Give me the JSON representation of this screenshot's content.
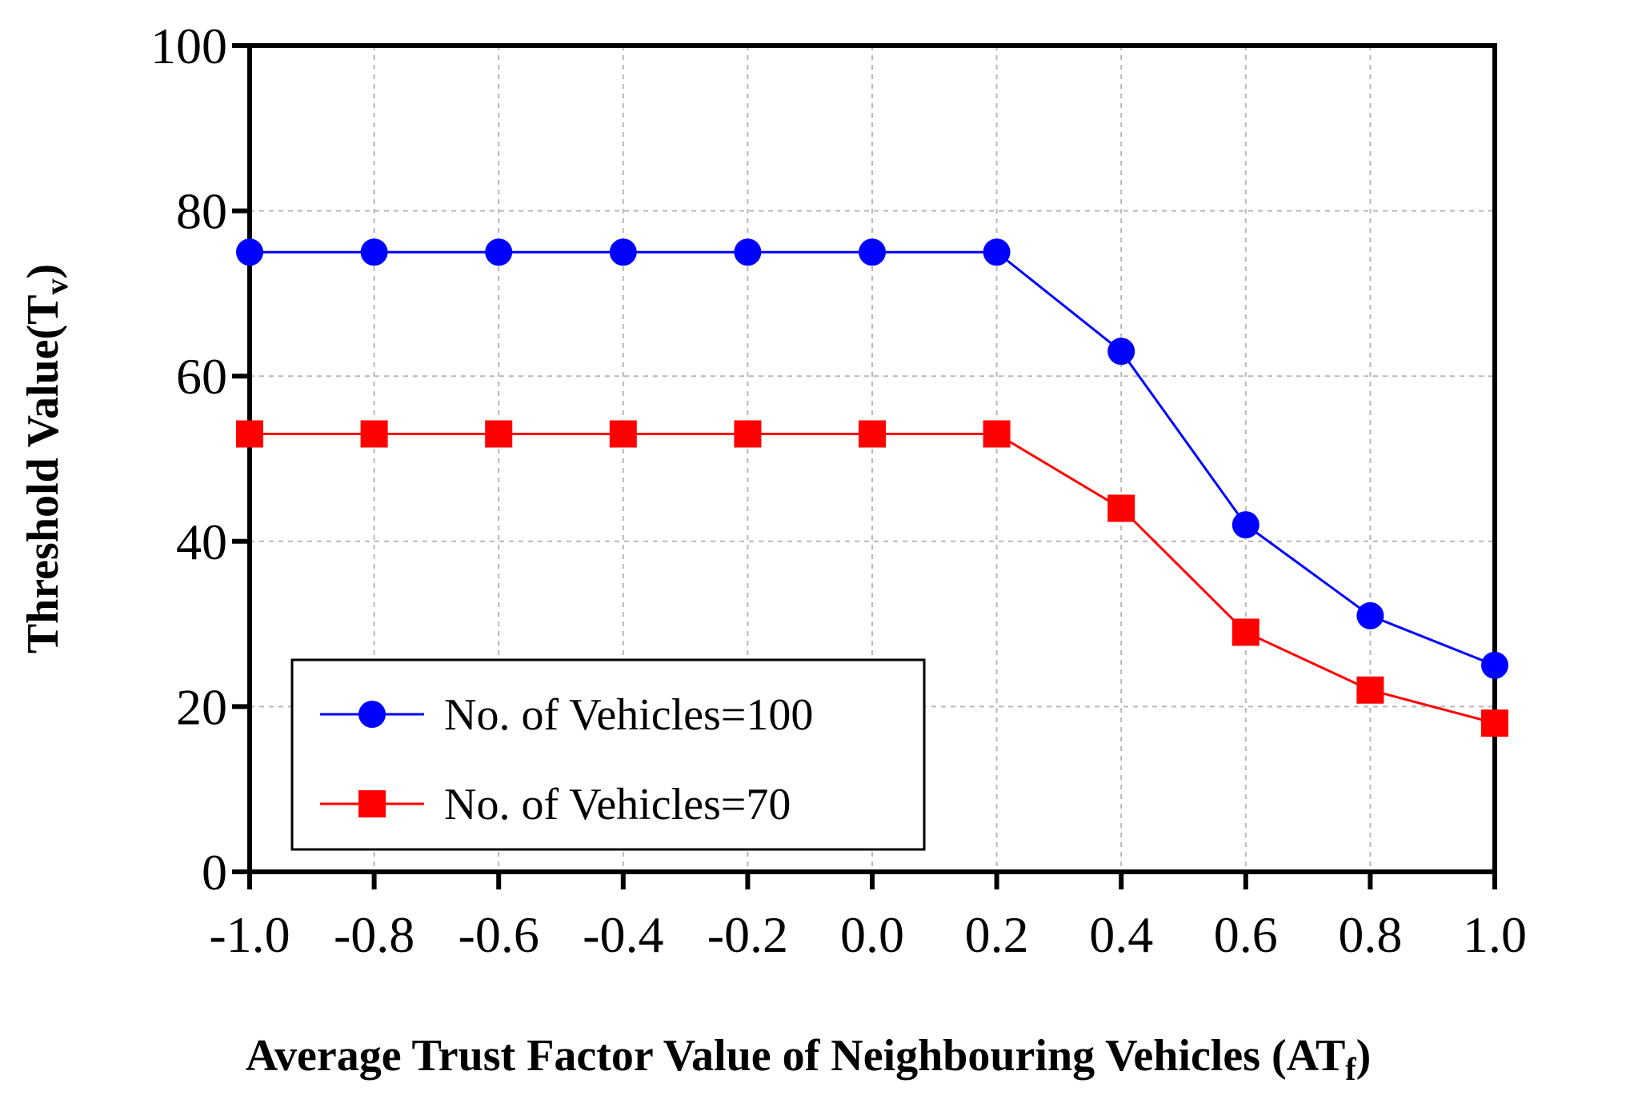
{
  "chart_data": {
    "type": "line",
    "title": "",
    "xlabel": "Average Trust Factor Value of Neighbouring Vehicles  (AT",
    "xlabel_sub": "f",
    "xlabel_suffix": ")",
    "ylabel": "Threshold Value(T",
    "ylabel_sub": "v",
    "ylabel_suffix": ")",
    "x": [
      -1.0,
      -0.8,
      -0.6,
      -0.4,
      -0.2,
      0.0,
      0.2,
      0.4,
      0.6,
      0.8,
      1.0
    ],
    "x_tick_labels": [
      "-1.0",
      "-0.8",
      "-0.6",
      "-0.4",
      "-0.2",
      "0.0",
      "0.2",
      "0.4",
      "0.6",
      "0.8",
      "1.0"
    ],
    "y_ticks": [
      0,
      20,
      40,
      60,
      80,
      100
    ],
    "y_tick_labels": [
      "0",
      "20",
      "40",
      "60",
      "80",
      "100"
    ],
    "xlim": [
      -1.0,
      1.0
    ],
    "ylim": [
      0,
      100
    ],
    "grid": true,
    "legend_position": "bottom-left",
    "series": [
      {
        "name": "No. of Vehicles=100",
        "color": "#0000ff",
        "marker": "circle",
        "values": [
          75,
          75,
          75,
          75,
          75,
          75,
          75,
          63,
          42,
          31,
          25
        ]
      },
      {
        "name": "No. of Vehicles=70",
        "color": "#ff0000",
        "marker": "square",
        "values": [
          53,
          53,
          53,
          53,
          53,
          53,
          53,
          44,
          29,
          22,
          18
        ]
      }
    ]
  }
}
